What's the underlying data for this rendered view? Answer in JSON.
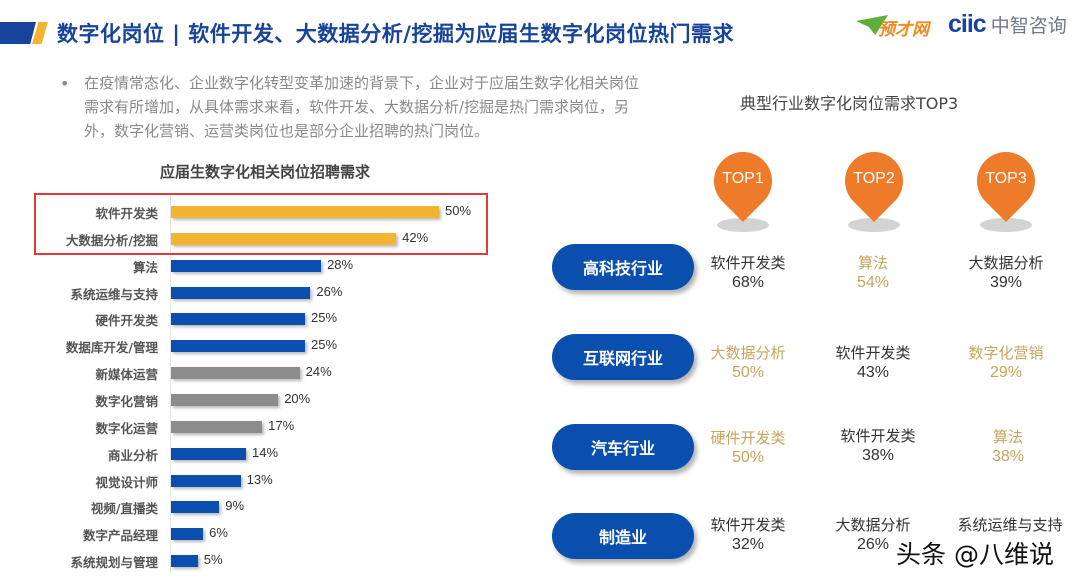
{
  "header": {
    "title": "数字化岗位 | 软件开发、大数据分析/挖掘为应届生数字化岗位热门需求",
    "logo_yucai": "预才网",
    "logo_ciic_en": "ciic",
    "logo_ciic_cn": "中智咨询",
    "accent_blue": "#17449a",
    "accent_yellow": "#f3b431"
  },
  "bullet": {
    "marker": "•",
    "text": "在疫情常态化、企业数字化转型变革加速的背景下，企业对于应届生数字化相关岗位需求有所增加，从具体需求来看，软件开发、大数据分析/挖掘是热门需求岗位，另外，数字化营销、运营类岗位也是部分企业招聘的热门岗位。"
  },
  "chart_data": [
    {
      "type": "bar",
      "orientation": "horizontal",
      "title": "应届生数字化相关岗位招聘需求",
      "xlabel": "",
      "ylabel": "",
      "grid": false,
      "legend": "none",
      "highlight": [
        "软件开发类",
        "大数据分析/挖掘"
      ],
      "categories": [
        "软件开发类",
        "大数据分析/挖掘",
        "算法",
        "系统运维与支持",
        "硬件开发类",
        "数据库开发/管理",
        "新媒体运营",
        "数字化营销",
        "数字化运营",
        "商业分析",
        "视觉设计师",
        "视频/直播类",
        "数字产品经理",
        "系统规划与管理"
      ],
      "values": [
        50,
        42,
        28,
        26,
        25,
        25,
        24,
        20,
        17,
        14,
        13,
        9,
        6,
        5
      ],
      "value_labels": [
        "50%",
        "42%",
        "28%",
        "26%",
        "25%",
        "25%",
        "24%",
        "20%",
        "17%",
        "14%",
        "13%",
        "9%",
        "6%",
        "5%"
      ],
      "colors": [
        "#f3b431",
        "#f3b431",
        "#0b4fae",
        "#0b4fae",
        "#0b4fae",
        "#0b4fae",
        "#8c8c8c",
        "#8c8c8c",
        "#8c8c8c",
        "#0b4fae",
        "#0b4fae",
        "#0b4fae",
        "#0b4fae",
        "#0b4fae"
      ],
      "unit": "%"
    },
    {
      "type": "table",
      "title": "典型行业数字化岗位需求TOP3",
      "columns": [
        "TOP1",
        "TOP2",
        "TOP3"
      ],
      "rows": [
        {
          "industry": "高科技行业",
          "cells": [
            {
              "job": "软件开发类",
              "pct": "68%"
            },
            {
              "job": "算法",
              "pct": "54%"
            },
            {
              "job": "大数据分析",
              "pct": "39%"
            }
          ]
        },
        {
          "industry": "互联网行业",
          "cells": [
            {
              "job": "大数据分析",
              "pct": "50%"
            },
            {
              "job": "软件开发类",
              "pct": "43%"
            },
            {
              "job": "数字化营销",
              "pct": "29%"
            }
          ]
        },
        {
          "industry": "汽车行业",
          "cells": [
            {
              "job": "硬件开发类",
              "pct": "50%"
            },
            {
              "job": "软件开发类",
              "pct": "38%"
            },
            {
              "job": "算法",
              "pct": "38%"
            }
          ]
        },
        {
          "industry": "制造业",
          "cells": [
            {
              "job": "软件开发类",
              "pct": "32%"
            },
            {
              "job": "大数据分析",
              "pct": "26%"
            },
            {
              "job": "系统运维与支持",
              "pct": ""
            }
          ]
        }
      ]
    }
  ],
  "left_chart": {
    "title": "应届生数字化相关岗位招聘需求",
    "bars": [
      {
        "label": "软件开发类",
        "value": "50%",
        "pct": 50,
        "color": "#f3b431"
      },
      {
        "label": "大数据分析/挖掘",
        "value": "42%",
        "pct": 42,
        "color": "#f3b431"
      },
      {
        "label": "算法",
        "value": "28%",
        "pct": 28,
        "color": "#0b4fae"
      },
      {
        "label": "系统运维与支持",
        "value": "26%",
        "pct": 26,
        "color": "#0b4fae"
      },
      {
        "label": "硬件开发类",
        "value": "25%",
        "pct": 25,
        "color": "#0b4fae"
      },
      {
        "label": "数据库开发/管理",
        "value": "25%",
        "pct": 25,
        "color": "#0b4fae"
      },
      {
        "label": "新媒体运营",
        "value": "24%",
        "pct": 24,
        "color": "#8c8c8c"
      },
      {
        "label": "数字化营销",
        "value": "20%",
        "pct": 20,
        "color": "#8c8c8c"
      },
      {
        "label": "数字化运营",
        "value": "17%",
        "pct": 17,
        "color": "#8c8c8c"
      },
      {
        "label": "商业分析",
        "value": "14%",
        "pct": 14,
        "color": "#0b4fae"
      },
      {
        "label": "视觉设计师",
        "value": "13%",
        "pct": 13,
        "color": "#0b4fae"
      },
      {
        "label": "视频/直播类",
        "value": "9%",
        "pct": 9,
        "color": "#0b4fae"
      },
      {
        "label": "数字产品经理",
        "value": "6%",
        "pct": 6,
        "color": "#0b4fae"
      },
      {
        "label": "系统规划与管理",
        "value": "5%",
        "pct": 5,
        "color": "#0b4fae"
      }
    ],
    "highlight_color": "#e03a3a"
  },
  "right_panel": {
    "title": "典型行业数字化岗位需求TOP3",
    "pins": [
      "TOP1",
      "TOP2",
      "TOP3"
    ],
    "pin_color": "#ee7b2a",
    "rows": [
      {
        "industry": "高科技行业",
        "c1": {
          "job": "软件开发类",
          "pct": "68%"
        },
        "c2": {
          "job": "算法",
          "pct": "54%"
        },
        "c3": {
          "job": "大数据分析",
          "pct": "39%"
        }
      },
      {
        "industry": "互联网行业",
        "c1": {
          "job": "大数据分析",
          "pct": "50%"
        },
        "c2": {
          "job": "软件开发类",
          "pct": "43%"
        },
        "c3": {
          "job": "数字化营销",
          "pct": "29%"
        }
      },
      {
        "industry": "汽车行业",
        "c1": {
          "job": "硬件开发类",
          "pct": "50%"
        },
        "c2": {
          "job": "软件开发类",
          "pct": "38%"
        },
        "c3": {
          "job": "算法",
          "pct": "38%"
        }
      },
      {
        "industry": "制造业",
        "c1": {
          "job": "软件开发类",
          "pct": "32%"
        },
        "c2": {
          "job": "大数据分析",
          "pct": "26%"
        },
        "c3": {
          "job": "系统运维与支持",
          "pct": ""
        }
      }
    ]
  },
  "watermark": "头条 @八维说"
}
